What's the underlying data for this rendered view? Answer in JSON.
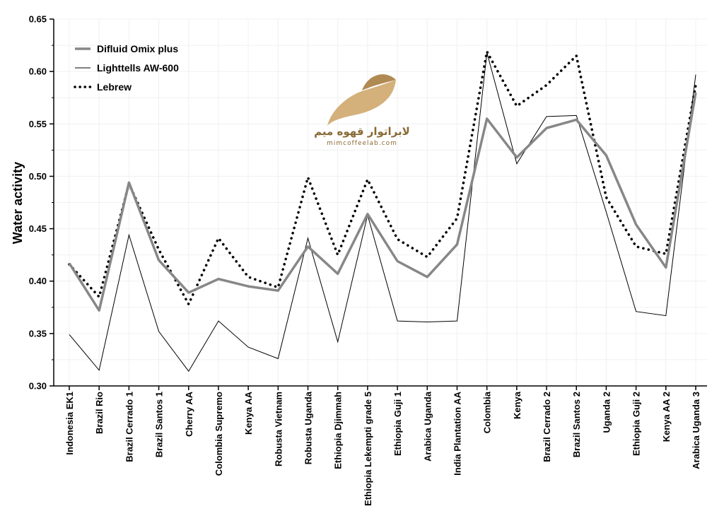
{
  "chart_data": {
    "type": "line",
    "title": "",
    "xlabel": "",
    "ylabel": "Water activity",
    "ylim": [
      0.3,
      0.65
    ],
    "yticks": [
      "0.30",
      "0.35",
      "0.40",
      "0.45",
      "0.50",
      "0.55",
      "0.60",
      "0.65"
    ],
    "grid": true,
    "legend_position": "top-left",
    "categories": [
      "Indonesia EK1",
      "Brazil Rio",
      "Brazil Cerrado 1",
      "Brazil Santos 1",
      "Cherry AA",
      "Colombia Supremo",
      "Kenya AA",
      "Robusta Vietnam",
      "Robusta Uganda",
      "Ethiopia Djimmah",
      "Ethiopia Lekempti grade 5",
      "Ethiopia Guji 1",
      "Arabica Uganda",
      "India Plantation AA",
      "Colombia",
      "Kenya",
      "Brazil Cerrado 2",
      "Brazil Santos 2",
      "Uganda 2",
      "Ethiopia Guji 2",
      "Kenya AA 2",
      "Arabica Uganda 3"
    ],
    "series": [
      {
        "name": "Difluid Omix plus",
        "style": "thick-gray",
        "color": "#878787",
        "values": [
          0.417,
          0.372,
          0.494,
          0.42,
          0.389,
          0.402,
          0.395,
          0.391,
          0.433,
          0.407,
          0.464,
          0.419,
          0.404,
          0.435,
          0.555,
          0.518,
          0.546,
          0.554,
          0.52,
          0.454,
          0.413,
          0.58
        ]
      },
      {
        "name": "Lighttells AW-600",
        "style": "thin-black",
        "color": "#000000",
        "values": [
          0.349,
          0.315,
          0.444,
          0.352,
          0.314,
          0.362,
          0.337,
          0.326,
          0.441,
          0.342,
          0.463,
          0.362,
          0.361,
          0.362,
          0.618,
          0.512,
          0.557,
          0.558,
          0.466,
          0.371,
          0.367,
          0.597
        ]
      },
      {
        "name": "Lebrew",
        "style": "dotted-black",
        "color": "#000000",
        "values": [
          0.416,
          0.385,
          0.493,
          0.43,
          0.378,
          0.441,
          0.404,
          0.394,
          0.499,
          0.425,
          0.497,
          0.44,
          0.423,
          0.46,
          0.619,
          0.567,
          0.587,
          0.615,
          0.48,
          0.433,
          0.426,
          0.587
        ]
      }
    ]
  },
  "logo": {
    "text_fa": "لابراتوار قهوه میم",
    "text_en": "mimcoffeelab.com",
    "colors": {
      "gold": "#c8a56a",
      "dark": "#b08a52"
    }
  }
}
